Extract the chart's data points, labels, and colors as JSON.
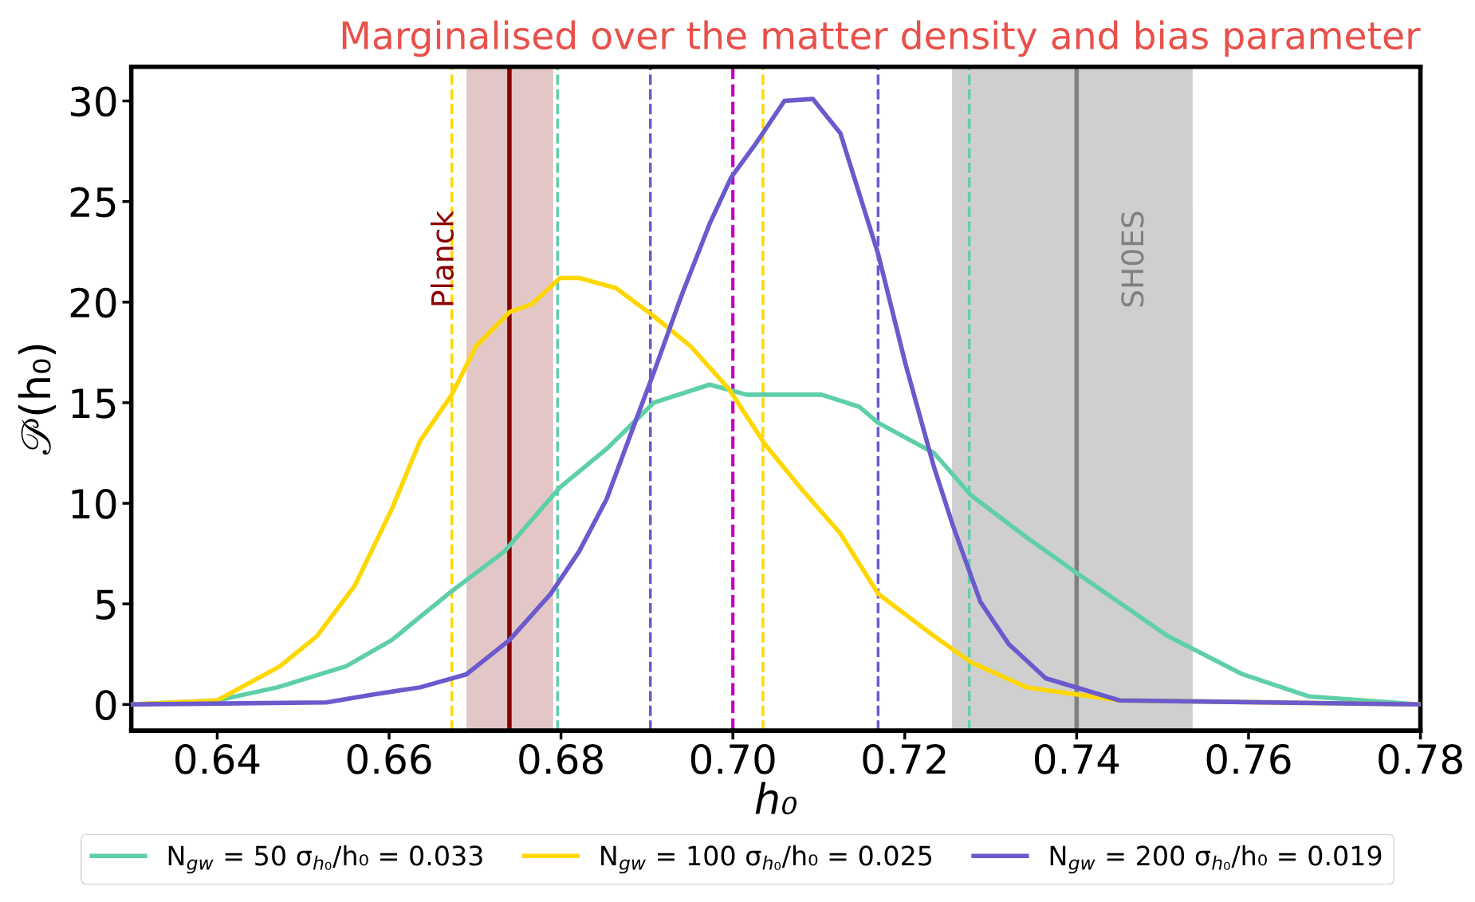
{
  "chart_data": {
    "type": "line",
    "title": "Marginalised over the matter density and bias parameter",
    "xlabel": "h₀",
    "ylabel": "𝒫(h₀)",
    "xlim": [
      0.63,
      0.78
    ],
    "ylim": [
      -1.3,
      31.7
    ],
    "xticks": [
      {
        "value": 0.64,
        "label": "0.64"
      },
      {
        "value": 0.66,
        "label": "0.66"
      },
      {
        "value": 0.68,
        "label": "0.68"
      },
      {
        "value": 0.7,
        "label": "0.70"
      },
      {
        "value": 0.72,
        "label": "0.72"
      },
      {
        "value": 0.74,
        "label": "0.74"
      },
      {
        "value": 0.76,
        "label": "0.76"
      },
      {
        "value": 0.78,
        "label": "0.78"
      }
    ],
    "yticks": [
      0,
      5,
      10,
      15,
      20,
      25,
      30
    ],
    "legend": "bottom",
    "grid": false,
    "series": [
      {
        "name": "N$_{gw}$ = 50 σ$_{h₀}$/h₀ = 0.033",
        "color": "#5fcfa8",
        "x": [
          0.63,
          0.64,
          0.647,
          0.655,
          0.6603,
          0.6669,
          0.6734,
          0.6799,
          0.6853,
          0.6908,
          0.6973,
          0.7016,
          0.7103,
          0.7147,
          0.7169,
          0.7234,
          0.7277,
          0.7342,
          0.7408,
          0.7506,
          0.7593,
          0.767,
          0.78
        ],
        "values": [
          0,
          0.2,
          0.85,
          1.9,
          3.2,
          5.5,
          7.6,
          10.8,
          12.7,
          15.0,
          15.9,
          15.4,
          15.4,
          14.8,
          14.0,
          12.5,
          10.4,
          8.3,
          6.3,
          3.4,
          1.5,
          0.4,
          0
        ]
      },
      {
        "name": "N$_{gw}$ = 100 σ$_{h₀}$/h₀ = 0.025",
        "color": "#ffd700",
        "x": [
          0.63,
          0.64,
          0.6473,
          0.6516,
          0.656,
          0.6603,
          0.6636,
          0.6673,
          0.6701,
          0.674,
          0.6766,
          0.6799,
          0.6821,
          0.6864,
          0.6908,
          0.6951,
          0.6995,
          0.7038,
          0.7082,
          0.7125,
          0.7169,
          0.7234,
          0.7277,
          0.7342,
          0.745,
          0.78
        ],
        "values": [
          0,
          0.2,
          1.9,
          3.4,
          5.9,
          9.7,
          13.1,
          15.4,
          17.8,
          19.5,
          19.9,
          21.2,
          21.2,
          20.7,
          19.3,
          17.8,
          15.7,
          12.9,
          10.6,
          8.5,
          5.5,
          3.4,
          2.1,
          0.85,
          0.2,
          0
        ]
      },
      {
        "name": "N$_{gw}$ = 200 σ$_{h₀}$/h₀ = 0.019",
        "color": "#6a5acd",
        "x": [
          0.63,
          0.6527,
          0.6582,
          0.6636,
          0.669,
          0.674,
          0.6788,
          0.6821,
          0.6853,
          0.6886,
          0.6908,
          0.694,
          0.6973,
          0.6998,
          0.7027,
          0.706,
          0.7093,
          0.7125,
          0.7169,
          0.7201,
          0.7234,
          0.7256,
          0.7288,
          0.7321,
          0.7364,
          0.745,
          0.78
        ],
        "values": [
          0,
          0.1,
          0.5,
          0.85,
          1.5,
          3.2,
          5.5,
          7.6,
          10.2,
          14.0,
          16.5,
          20.3,
          23.9,
          26.2,
          27.9,
          30.0,
          30.1,
          28.4,
          22.4,
          16.9,
          11.8,
          8.9,
          5.1,
          3.0,
          1.3,
          0.2,
          0
        ]
      }
    ],
    "bands": [
      {
        "axis": "x",
        "from": 0.6691,
        "to": 0.679,
        "color": "#c89090"
      },
      {
        "axis": "x",
        "from": 0.7256,
        "to": 0.7534,
        "color": "#a0a0a0"
      }
    ],
    "ref_lines": [
      {
        "axis": "x",
        "value": 0.674,
        "label": "Planck",
        "color": "#8b0000",
        "line_style": "solid"
      },
      {
        "axis": "x",
        "value": 0.74,
        "label": "SH0ES",
        "color": "#808080",
        "line_style": "solid"
      },
      {
        "axis": "x",
        "value": 0.7,
        "color": "#c000c0",
        "line_style": "dashed"
      },
      {
        "axis": "x",
        "value": 0.6673,
        "color": "#ffd700",
        "line_style": "dashed"
      },
      {
        "axis": "x",
        "value": 0.7035,
        "color": "#ffd700",
        "line_style": "dashed"
      },
      {
        "axis": "x",
        "value": 0.6796,
        "color": "#5fcfa8",
        "line_style": "dashed"
      },
      {
        "axis": "x",
        "value": 0.7275,
        "color": "#5fcfa8",
        "line_style": "dashed"
      },
      {
        "axis": "x",
        "value": 0.6904,
        "color": "#6a5acd",
        "line_style": "dashed"
      },
      {
        "axis": "x",
        "value": 0.7169,
        "color": "#6a5acd",
        "line_style": "dashed"
      }
    ]
  }
}
